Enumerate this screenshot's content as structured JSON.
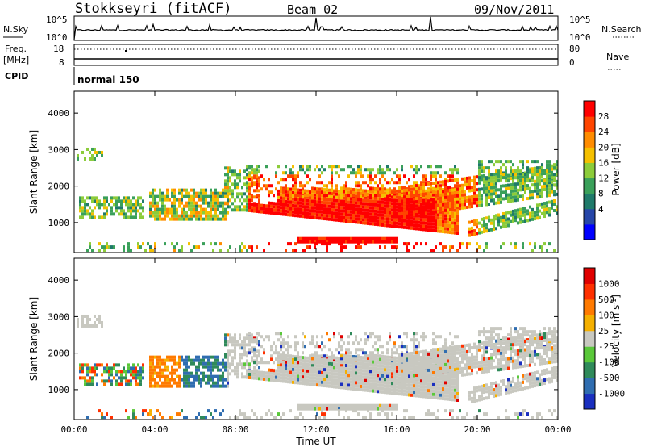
{
  "header": {
    "station": "Stokkseyri (fitACF)",
    "beam": "Beam 02",
    "date": "09/Nov/2011"
  },
  "noise_panel": {
    "left_label": "N.Sky",
    "right_label": "N.Search",
    "left_ticks": [
      "10^5",
      "10^0"
    ],
    "right_ticks": [
      "10^5",
      "10^0"
    ]
  },
  "freq_panel": {
    "left_label": "Freq.",
    "left_unit": "[MHz]",
    "right_label": "Nave",
    "left_ticks": [
      "18",
      "8"
    ],
    "right_ticks": [
      "80",
      "0"
    ]
  },
  "cpid": {
    "label": "CPID",
    "mode": "normal 150"
  },
  "chart_data": [
    {
      "type": "heatmap",
      "quantity": "Power",
      "ylabel": "Slant Range [km]",
      "ylim": [
        180,
        4600
      ],
      "xlim": [
        0,
        24
      ],
      "yticks": [
        "1000",
        "2000",
        "3000",
        "4000"
      ],
      "colorbar_label": "Power [dB]",
      "colorbar_ticks": [
        "28",
        "24",
        "20",
        "16",
        "12",
        "8",
        "4"
      ],
      "colors": [
        "#0000ff",
        "#2646a8",
        "#1f7a6a",
        "#3aa05a",
        "#8ccc3a",
        "#f5c000",
        "#ff8c00",
        "#ff4500",
        "#ff0000"
      ]
    },
    {
      "type": "heatmap",
      "quantity": "Velocity",
      "ylabel": "Slant Range [km]",
      "ylim": [
        180,
        4600
      ],
      "xlim": [
        0,
        24
      ],
      "yticks": [
        "1000",
        "2000",
        "3000",
        "4000"
      ],
      "colorbar_label": "Velocity [m s",
      "colorbar_sup": "-1",
      "colorbar_ticks": [
        "1000",
        "500",
        "100",
        "25",
        "-25",
        "-100",
        "-500",
        "-1000"
      ],
      "colors": [
        "#1a2fbf",
        "#2f6db0",
        "#2f8a5a",
        "#5ac83a",
        "#c8c8c0",
        "#f5b000",
        "#ff7a00",
        "#ff3000",
        "#e00000"
      ],
      "ground_scatter_color": "#c8c8c0"
    }
  ],
  "xaxis": {
    "label": "Time UT",
    "ticks": [
      "00:00",
      "04:00",
      "08:00",
      "12:00",
      "16:00",
      "20:00",
      "00:00"
    ]
  }
}
